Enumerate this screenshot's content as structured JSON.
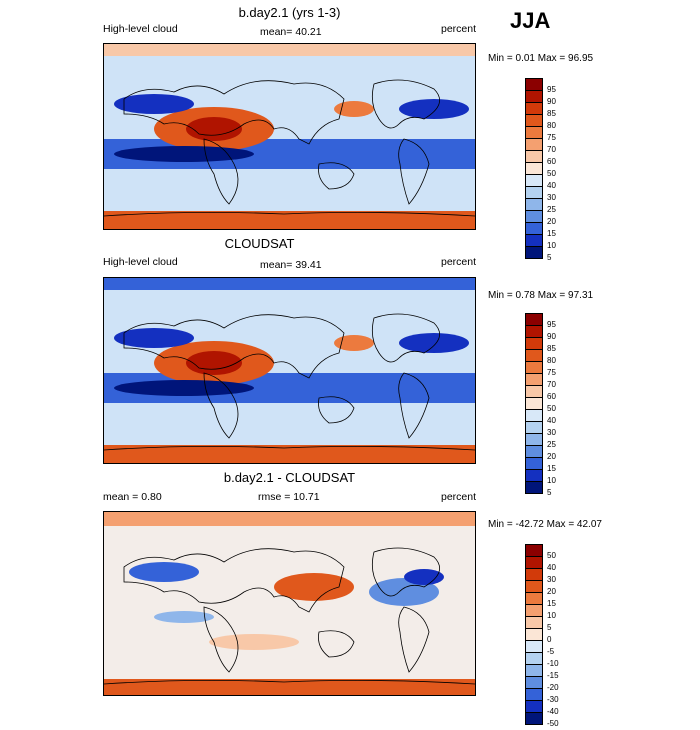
{
  "season": "JJA",
  "panels": [
    {
      "title": "b.day2.1 (yrs 1-3)",
      "left_label": "High-level cloud",
      "center_label": "mean=  40.21",
      "right_label": "percent",
      "minmax": "Min =   0.01 Max =  96.95",
      "legend": [
        "95",
        "90",
        "85",
        "80",
        "75",
        "70",
        "60",
        "50",
        "40",
        "30",
        "25",
        "20",
        "15",
        "10",
        "5"
      ],
      "colors": [
        "#8b0000",
        "#b01400",
        "#d23a0a",
        "#e0581c",
        "#ec7a3e",
        "#f4a070",
        "#f8c8a8",
        "#fbe6d6",
        "#d8e8f8",
        "#b4d2f0",
        "#8fb6ea",
        "#5f8ee0",
        "#3462d8",
        "#1430c0",
        "#00157a"
      ],
      "kind": "model"
    },
    {
      "title": "CLOUDSAT",
      "left_label": "High-level cloud",
      "center_label": "mean=  39.41",
      "right_label": "percent",
      "minmax": "Min =   0.78 Max =  97.31",
      "legend": [
        "95",
        "90",
        "85",
        "80",
        "75",
        "70",
        "60",
        "50",
        "40",
        "30",
        "25",
        "20",
        "15",
        "10",
        "5"
      ],
      "colors": [
        "#8b0000",
        "#b01400",
        "#d23a0a",
        "#e0581c",
        "#ec7a3e",
        "#f4a070",
        "#f8c8a8",
        "#fbe6d6",
        "#d8e8f8",
        "#b4d2f0",
        "#8fb6ea",
        "#5f8ee0",
        "#3462d8",
        "#1430c0",
        "#00157a"
      ],
      "kind": "obs"
    },
    {
      "title": "b.day2.1 - CLOUDSAT",
      "left_label": "mean =   0.80",
      "center_label": "rmse =  10.71",
      "right_label": "percent",
      "minmax": "Min = -42.72 Max =  42.07",
      "legend": [
        "50",
        "40",
        "30",
        "20",
        "15",
        "10",
        "5",
        "0",
        "-5",
        "-10",
        "-15",
        "-20",
        "-30",
        "-40",
        "-50"
      ],
      "colors": [
        "#8b0000",
        "#b01400",
        "#d23a0a",
        "#e0581c",
        "#ec7a3e",
        "#f4a070",
        "#f8c8a8",
        "#fbe6d6",
        "#d8e8f8",
        "#b4d2f0",
        "#8fb6ea",
        "#5f8ee0",
        "#3462d8",
        "#1430c0",
        "#00157a"
      ],
      "kind": "diff"
    }
  ]
}
